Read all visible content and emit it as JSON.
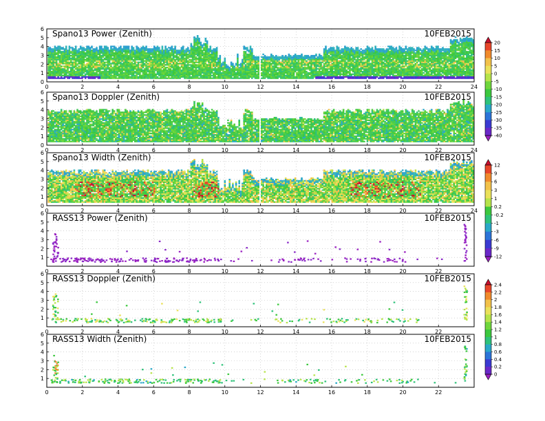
{
  "chart_data": [
    {
      "type": "heatmap",
      "title": "Spano13 Power (Zenith)",
      "date": "10FEB2015",
      "xlim": [
        0,
        24
      ],
      "ylim": [
        0,
        6
      ],
      "x_ticks": [
        "0",
        "2",
        "4",
        "6",
        "8",
        "10",
        "12",
        "14",
        "16",
        "18",
        "20",
        "22",
        "24"
      ],
      "y_ticks": [
        "0",
        "1",
        "2",
        "3",
        "4",
        "5",
        "6"
      ],
      "grid": true,
      "colorbar": "scale_a"
    },
    {
      "type": "heatmap",
      "title": "Spano13 Doppler (Zenith)",
      "date": "10FEB2015",
      "xlim": [
        0,
        24
      ],
      "ylim": [
        0,
        6
      ],
      "x_ticks": [
        "0",
        "2",
        "4",
        "6",
        "8",
        "10",
        "12",
        "14",
        "16",
        "18",
        "20",
        "22",
        "24"
      ],
      "y_ticks": [
        "0",
        "1",
        "2",
        "3",
        "4",
        "5",
        "6"
      ],
      "grid": true,
      "colorbar": "scale_a"
    },
    {
      "type": "heatmap",
      "title": "Spano13 Width (Zenith)",
      "date": "10FEB2015",
      "xlim": [
        0,
        24
      ],
      "ylim": [
        0,
        6
      ],
      "x_ticks": [
        "0",
        "2",
        "4",
        "6",
        "8",
        "10",
        "12",
        "14",
        "16",
        "18",
        "20",
        "22",
        "24"
      ],
      "y_ticks": [
        "0",
        "1",
        "2",
        "3",
        "4",
        "5",
        "6"
      ],
      "grid": true,
      "colorbar": "scale_b"
    },
    {
      "type": "scatter",
      "title": "RASS13 Power (Zenith)",
      "date": "10FEB2015",
      "xlim": [
        0,
        24
      ],
      "ylim": [
        0,
        6
      ],
      "x_ticks": [
        "0",
        "2",
        "4",
        "6",
        "8",
        "10",
        "12",
        "14",
        "16",
        "18",
        "20",
        "22"
      ],
      "y_ticks": [
        "1",
        "2",
        "3",
        "4",
        "5",
        "6"
      ],
      "grid": true,
      "colorbar": "scale_b"
    },
    {
      "type": "scatter",
      "title": "RASS13 Doppler (Zenith)",
      "date": "10FEB2015",
      "xlim": [
        0,
        24
      ],
      "ylim": [
        0,
        6
      ],
      "x_ticks": [
        "0",
        "2",
        "4",
        "6",
        "8",
        "10",
        "12",
        "14",
        "16",
        "18",
        "20",
        "22"
      ],
      "y_ticks": [
        "1",
        "2",
        "3",
        "4",
        "5",
        "6"
      ],
      "grid": true,
      "colorbar": "scale_c"
    },
    {
      "type": "scatter",
      "title": "RASS13 Width (Zenith)",
      "date": "10FEB2015",
      "xlim": [
        0,
        24
      ],
      "ylim": [
        0,
        6
      ],
      "x_ticks": [
        "0",
        "2",
        "4",
        "6",
        "8",
        "10",
        "12",
        "14",
        "16",
        "18",
        "20",
        "22"
      ],
      "y_ticks": [
        "1",
        "2",
        "3",
        "4",
        "5",
        "6"
      ],
      "grid": true,
      "colorbar": "scale_c"
    }
  ],
  "colorbars": {
    "scale_a": {
      "labels": [
        "20",
        "15",
        "10",
        "5",
        "0",
        "-5",
        "-10",
        "-15",
        "-20",
        "-25",
        "-30",
        "-35",
        "-40"
      ],
      "colors": [
        "#c8102e",
        "#e8462a",
        "#f08a2c",
        "#f2c14a",
        "#eae15a",
        "#b6e34a",
        "#6fd63c",
        "#3cc83e",
        "#2ec27a",
        "#2aa8c8",
        "#2c74d8",
        "#3a3ad2",
        "#6a28c8",
        "#9a20c0"
      ]
    },
    "scale_b": {
      "labels": [
        "12",
        "9",
        "6",
        "3",
        "1",
        "0.2",
        "-0.2",
        "-1",
        "-3",
        "-6",
        "-9",
        "-12"
      ],
      "colors": [
        "#c8102e",
        "#e8462a",
        "#f08a2c",
        "#f2c14a",
        "#eae15a",
        "#b6e34a",
        "#3cc83e",
        "#2ec27a",
        "#2aa8c8",
        "#2c74d8",
        "#3a3ad2",
        "#6a28c8",
        "#9a20c0"
      ]
    },
    "scale_c": {
      "labels": [
        "2.4",
        "2.2",
        "2",
        "1.8",
        "1.6",
        "1.4",
        "1.2",
        "1",
        "0.8",
        "0.6",
        "0.4",
        "0.2",
        "0"
      ],
      "colors": [
        "#c8102e",
        "#e8462a",
        "#f08a2c",
        "#f2c14a",
        "#eae15a",
        "#b6e34a",
        "#6fd63c",
        "#3cc83e",
        "#2ec27a",
        "#2aa8c8",
        "#2c74d8",
        "#3a3ad2",
        "#6a28c8",
        "#9a20c0"
      ]
    }
  }
}
